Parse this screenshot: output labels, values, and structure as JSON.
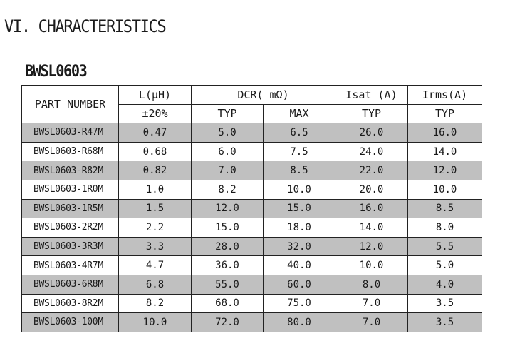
{
  "section_title": "VI. CHARACTERISTICS",
  "product_title": "BWSL0603",
  "table": {
    "header": {
      "part_number": "PART NUMBER",
      "inductance": "L(μH)",
      "inductance_tol": "±20%",
      "dcr": "DCR( mΩ)",
      "dcr_typ": "TYP",
      "dcr_max": "MAX",
      "isat": "Isat (A)",
      "isat_typ": "TYP",
      "irms": "Irms(A)",
      "irms_typ": "TYP"
    },
    "rows": [
      {
        "part": "BWSL0603-R47M",
        "l": "0.47",
        "dcr_typ": "5.0",
        "dcr_max": "6.5",
        "isat": "26.0",
        "irms": "16.0"
      },
      {
        "part": "BWSL0603-R68M",
        "l": "0.68",
        "dcr_typ": "6.0",
        "dcr_max": "7.5",
        "isat": "24.0",
        "irms": "14.0"
      },
      {
        "part": "BWSL0603-R82M",
        "l": "0.82",
        "dcr_typ": "7.0",
        "dcr_max": "8.5",
        "isat": "22.0",
        "irms": "12.0"
      },
      {
        "part": "BWSL0603-1R0M",
        "l": "1.0",
        "dcr_typ": "8.2",
        "dcr_max": "10.0",
        "isat": "20.0",
        "irms": "10.0"
      },
      {
        "part": "BWSL0603-1R5M",
        "l": "1.5",
        "dcr_typ": "12.0",
        "dcr_max": "15.0",
        "isat": "16.0",
        "irms": "8.5"
      },
      {
        "part": "BWSL0603-2R2M",
        "l": "2.2",
        "dcr_typ": "15.0",
        "dcr_max": "18.0",
        "isat": "14.0",
        "irms": "8.0"
      },
      {
        "part": "BWSL0603-3R3M",
        "l": "3.3",
        "dcr_typ": "28.0",
        "dcr_max": "32.0",
        "isat": "12.0",
        "irms": "5.5"
      },
      {
        "part": "BWSL0603-4R7M",
        "l": "4.7",
        "dcr_typ": "36.0",
        "dcr_max": "40.0",
        "isat": "10.0",
        "irms": "5.0"
      },
      {
        "part": "BWSL0603-6R8M",
        "l": "6.8",
        "dcr_typ": "55.0",
        "dcr_max": "60.0",
        "isat": "8.0",
        "irms": "4.0"
      },
      {
        "part": "BWSL0603-8R2M",
        "l": "8.2",
        "dcr_typ": "68.0",
        "dcr_max": "75.0",
        "isat": "7.0",
        "irms": "3.5"
      },
      {
        "part": "BWSL0603-100M",
        "l": "10.0",
        "dcr_typ": "72.0",
        "dcr_max": "80.0",
        "isat": "7.0",
        "irms": "3.5"
      }
    ],
    "shaded_row_color": "#c0c0c0"
  }
}
